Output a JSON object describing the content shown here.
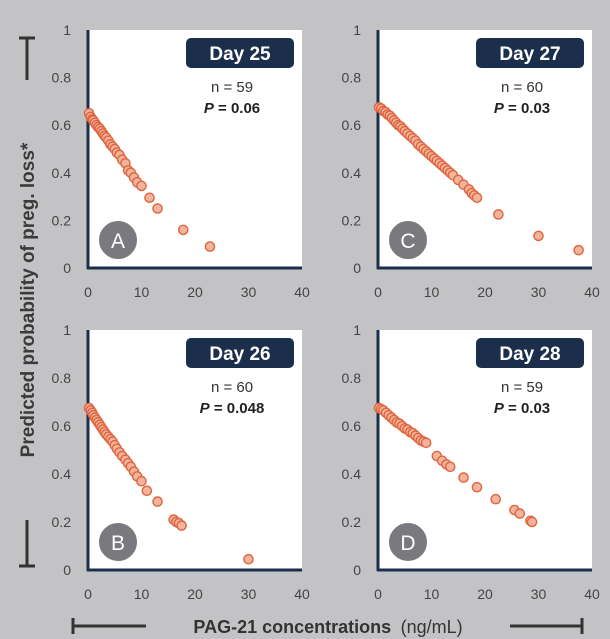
{
  "y_axis_label": "Predicted probability of preg. loss*",
  "x_axis_label": {
    "bold": "PAG-21 concentrations",
    "unit": "(ng/mL)"
  },
  "colors": {
    "background": "#c3c3c6",
    "panel": "#ffffff",
    "axis": "#1b2f4d",
    "badge": "#1b2f4d",
    "marker_fill": "#f2b49d",
    "marker_stroke": "#e0643d",
    "letter_badge": "#7a7a7e"
  },
  "chart_data": [
    {
      "type": "scatter",
      "panel": "A",
      "title": "Day 25",
      "n_label": "n = 59",
      "p_label": "P = 0.06",
      "xlim": [
        0,
        40
      ],
      "ylim": [
        0,
        1
      ],
      "xticks": [
        "0",
        "10",
        "20",
        "30",
        "40"
      ],
      "yticks": [
        "0",
        "0.2",
        "0.4",
        "0.6",
        "0.8",
        "1"
      ],
      "x": [
        0.2,
        0.5,
        0.8,
        1.0,
        1.3,
        1.6,
        1.9,
        2.2,
        2.5,
        2.8,
        3.1,
        3.4,
        3.8,
        4.2,
        4.6,
        5.0,
        5.4,
        5.9,
        6.4,
        7.0,
        7.5,
        8.0,
        8.6,
        9.2,
        10.0,
        11.5,
        13.0,
        17.8,
        22.8
      ],
      "y": [
        0.65,
        0.635,
        0.625,
        0.62,
        0.61,
        0.6,
        0.592,
        0.585,
        0.575,
        0.565,
        0.555,
        0.548,
        0.535,
        0.52,
        0.51,
        0.5,
        0.485,
        0.475,
        0.455,
        0.44,
        0.41,
        0.4,
        0.38,
        0.36,
        0.345,
        0.295,
        0.25,
        0.16,
        0.09
      ]
    },
    {
      "type": "scatter",
      "panel": "B",
      "title": "Day 26",
      "n_label": "n = 60",
      "p_label": "P = 0.048",
      "xlim": [
        0,
        40
      ],
      "ylim": [
        0,
        1
      ],
      "xticks": [
        "0",
        "10",
        "20",
        "30",
        "40"
      ],
      "yticks": [
        "0",
        "0.2",
        "0.4",
        "0.6",
        "0.8",
        "1"
      ],
      "x": [
        0.2,
        0.5,
        0.8,
        1.0,
        1.3,
        1.6,
        1.9,
        2.2,
        2.5,
        2.8,
        3.1,
        3.4,
        3.8,
        4.2,
        4.6,
        5.0,
        5.4,
        5.9,
        6.4,
        7.0,
        7.5,
        8.0,
        8.6,
        9.2,
        10.0,
        11.0,
        13.0,
        16.0,
        16.5,
        17.0,
        17.5,
        30.0
      ],
      "y": [
        0.675,
        0.665,
        0.655,
        0.645,
        0.635,
        0.625,
        0.615,
        0.605,
        0.595,
        0.585,
        0.575,
        0.565,
        0.555,
        0.545,
        0.535,
        0.52,
        0.505,
        0.49,
        0.475,
        0.46,
        0.445,
        0.43,
        0.41,
        0.39,
        0.37,
        0.33,
        0.285,
        0.21,
        0.2,
        0.195,
        0.185,
        0.045
      ]
    },
    {
      "type": "scatter",
      "panel": "C",
      "title": "Day 27",
      "n_label": "n = 60",
      "p_label": "P = 0.03",
      "xlim": [
        0,
        40
      ],
      "ylim": [
        0,
        1
      ],
      "xticks": [
        "0",
        "10",
        "20",
        "30",
        "40"
      ],
      "yticks": [
        "0",
        "0.2",
        "0.4",
        "0.6",
        "0.8",
        "1"
      ],
      "x": [
        0.2,
        0.6,
        1.0,
        1.4,
        1.8,
        2.2,
        2.6,
        3.0,
        3.4,
        3.8,
        4.2,
        4.6,
        5.0,
        5.5,
        6.0,
        6.5,
        7.0,
        7.5,
        8.0,
        8.5,
        9.0,
        9.5,
        10.0,
        10.5,
        11.0,
        11.5,
        12.0,
        12.5,
        13.0,
        13.5,
        14.0,
        15.0,
        16.0,
        17.0,
        17.5,
        18.0,
        18.5,
        22.5,
        30.0,
        37.5
      ],
      "y": [
        0.675,
        0.67,
        0.66,
        0.655,
        0.645,
        0.64,
        0.63,
        0.62,
        0.61,
        0.6,
        0.595,
        0.585,
        0.575,
        0.565,
        0.555,
        0.545,
        0.535,
        0.52,
        0.51,
        0.5,
        0.49,
        0.48,
        0.47,
        0.46,
        0.45,
        0.44,
        0.43,
        0.42,
        0.41,
        0.4,
        0.39,
        0.37,
        0.35,
        0.33,
        0.315,
        0.305,
        0.295,
        0.225,
        0.135,
        0.075
      ]
    },
    {
      "type": "scatter",
      "panel": "D",
      "title": "Day 28",
      "n_label": "n = 59",
      "p_label": "P = 0.03",
      "xlim": [
        0,
        40
      ],
      "ylim": [
        0,
        1
      ],
      "xticks": [
        "0",
        "10",
        "20",
        "30",
        "40"
      ],
      "yticks": [
        "0",
        "0.2",
        "0.4",
        "0.6",
        "0.8",
        "1"
      ],
      "x": [
        0.2,
        0.6,
        1.0,
        1.5,
        2.0,
        2.5,
        3.0,
        3.5,
        4.0,
        4.5,
        5.0,
        5.5,
        6.0,
        6.5,
        7.0,
        7.5,
        8.0,
        8.5,
        9.0,
        11.0,
        12.0,
        12.8,
        13.5,
        16.0,
        18.5,
        22.0,
        25.5,
        26.5,
        28.5,
        28.8
      ],
      "y": [
        0.675,
        0.67,
        0.665,
        0.655,
        0.645,
        0.635,
        0.625,
        0.615,
        0.61,
        0.6,
        0.59,
        0.585,
        0.575,
        0.57,
        0.56,
        0.55,
        0.54,
        0.535,
        0.53,
        0.475,
        0.455,
        0.44,
        0.43,
        0.385,
        0.345,
        0.295,
        0.25,
        0.235,
        0.205,
        0.2
      ]
    }
  ]
}
